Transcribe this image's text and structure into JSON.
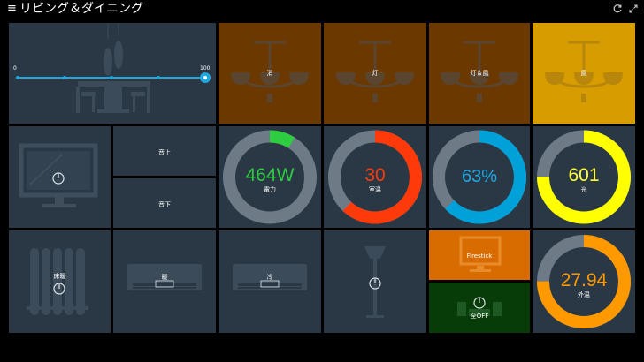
{
  "header": {
    "menu_icon": "hamburger-icon",
    "title": "リビング＆ダイニング",
    "refresh_icon": "refresh-icon",
    "fullscreen_icon": "expand-icon"
  },
  "slider": {
    "min_label": "0",
    "max_label": "100",
    "value": 100
  },
  "lights": [
    {
      "label": "消",
      "state": "off",
      "color": "#6b3800"
    },
    {
      "label": "灯",
      "state": "off",
      "color": "#6b3800"
    },
    {
      "label": "灯＆風",
      "state": "off",
      "color": "#6b3800"
    },
    {
      "label": "風",
      "state": "on",
      "color": "#d79d00"
    }
  ],
  "tv": {
    "up_label": "音上",
    "down_label": "音下"
  },
  "gauges": [
    {
      "value": "464W",
      "label": "電力",
      "fraction": 0.09,
      "color": "#2ecc40",
      "text_color": "#2ecc40",
      "track": "#6e7b87"
    },
    {
      "value": "30",
      "label": "室温",
      "fraction": 0.62,
      "color": "#ff3a0a",
      "text_color": "#ff3a0a",
      "track": "#6e7b87"
    },
    {
      "value": "63%",
      "label": "",
      "fraction": 0.63,
      "color": "#00a0d8",
      "text_color": "#1fa8e0",
      "track": "#6e7b87"
    },
    {
      "value": "601",
      "label": "光",
      "fraction": 0.75,
      "color": "#ffff00",
      "text_color": "#ffff33",
      "track": "#6e7b87"
    },
    {
      "value": "27.94",
      "label": "外温",
      "fraction": 0.75,
      "color": "#ff9900",
      "text_color": "#ff9900",
      "track": "#6e7b87"
    }
  ],
  "heater": {
    "label": "床暖"
  },
  "ac1": {
    "label": "暖"
  },
  "ac2": {
    "label": "冷"
  },
  "firestick": {
    "label": "Firestick",
    "color": "#d86c00"
  },
  "all_off": {
    "label": "全OFF",
    "color": "#073b07"
  }
}
